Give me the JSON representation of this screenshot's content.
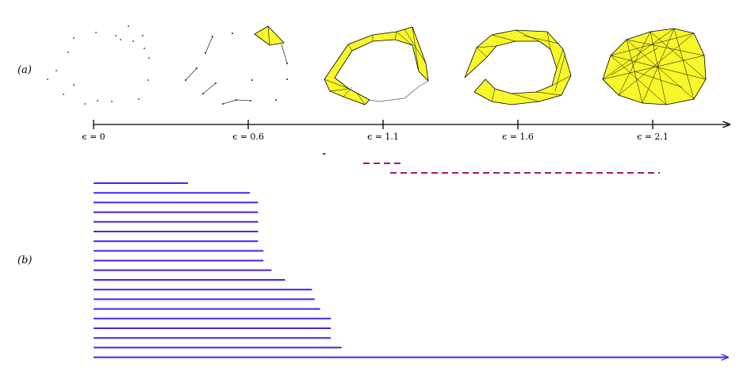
{
  "panel_labels": {
    "a": "(a)",
    "b": "(b)"
  },
  "filtration": {
    "epsilon_ticks": [
      "ϵ = 0",
      "ϵ = 0.6",
      "ϵ = 1.1",
      "ϵ = 1.6",
      "ϵ = 2.1"
    ],
    "stage_values": [
      0,
      0.6,
      1.1,
      1.6,
      2.1
    ]
  },
  "colors": {
    "simplex_fill": "#f7f72a",
    "h0_bars": "#4a22ee",
    "h1_bars": "#a0187a",
    "axis": "#000000"
  },
  "barcode": {
    "epsilon_range": [
      0,
      2.4
    ],
    "h1_bars": [
      {
        "start": 0.85,
        "end": 0.86
      },
      {
        "start": 1.0,
        "end": 1.15
      },
      {
        "start": 1.1,
        "end": 2.1
      }
    ],
    "h0_bars": [
      {
        "start": 0,
        "end": 0.35
      },
      {
        "start": 0,
        "end": 0.58
      },
      {
        "start": 0,
        "end": 0.61
      },
      {
        "start": 0,
        "end": 0.61
      },
      {
        "start": 0,
        "end": 0.61
      },
      {
        "start": 0,
        "end": 0.61
      },
      {
        "start": 0,
        "end": 0.61
      },
      {
        "start": 0,
        "end": 0.63
      },
      {
        "start": 0,
        "end": 0.63
      },
      {
        "start": 0,
        "end": 0.66
      },
      {
        "start": 0,
        "end": 0.71
      },
      {
        "start": 0,
        "end": 0.81
      },
      {
        "start": 0,
        "end": 0.82
      },
      {
        "start": 0,
        "end": 0.84
      },
      {
        "start": 0,
        "end": 0.88
      },
      {
        "start": 0,
        "end": 0.88
      },
      {
        "start": 0,
        "end": 0.88
      },
      {
        "start": 0,
        "end": 0.92
      },
      {
        "start": 0,
        "end": null
      }
    ]
  }
}
